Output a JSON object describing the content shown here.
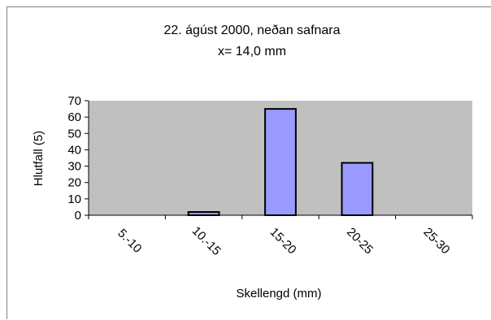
{
  "chart_data": {
    "type": "bar",
    "title": "22. ágúst 2000, neðan safnara",
    "subtitle": "x= 14,0 mm",
    "xlabel": "Skellengd (mm)",
    "ylabel": "Hlutfall (5)",
    "categories": [
      "5.-10",
      "10.-15",
      "15-20",
      "20-25",
      "25-30"
    ],
    "values": [
      0,
      2,
      65,
      32,
      0
    ],
    "ylim": [
      0,
      70
    ],
    "yticks": [
      0,
      10,
      20,
      30,
      40,
      50,
      60,
      70
    ],
    "grid": false,
    "legend": "none",
    "colors": {
      "bar_fill": "#9999ff",
      "bar_stroke": "#000000",
      "plot_background": "#c0c0c0",
      "frame_border": "#808080"
    }
  }
}
